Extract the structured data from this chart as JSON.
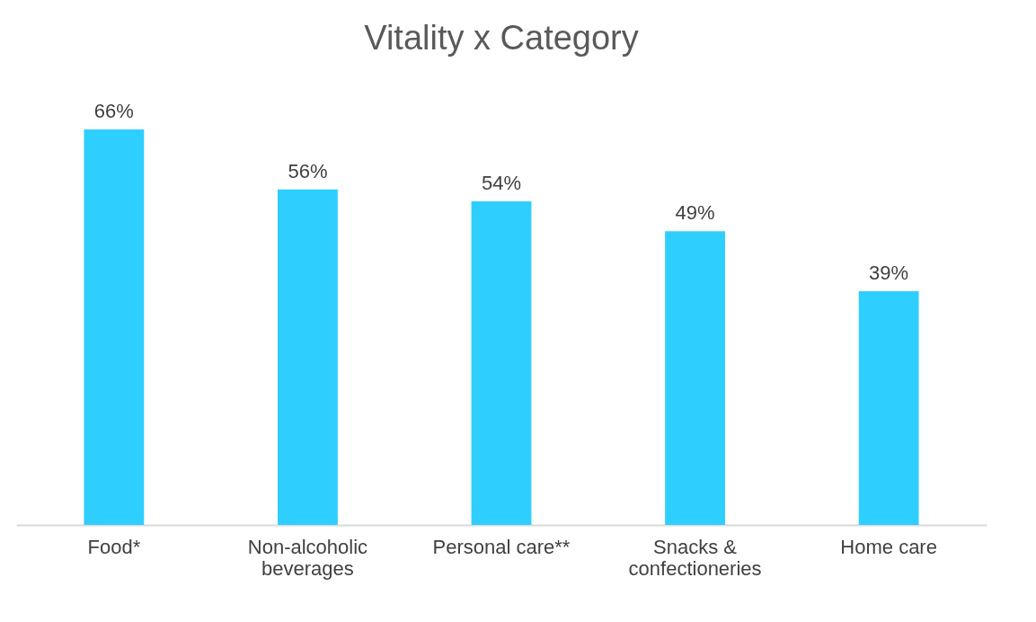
{
  "chart_data": {
    "type": "bar",
    "title": "Vitality x Category",
    "categories": [
      "Food*",
      "Non-alcoholic beverages",
      "Personal care**",
      "Snacks & confectioneries",
      "Home care"
    ],
    "values": [
      66,
      56,
      54,
      49,
      39
    ],
    "value_labels": [
      "66%",
      "56%",
      "54%",
      "49%",
      "39%"
    ],
    "color": "#2ecfff"
  }
}
